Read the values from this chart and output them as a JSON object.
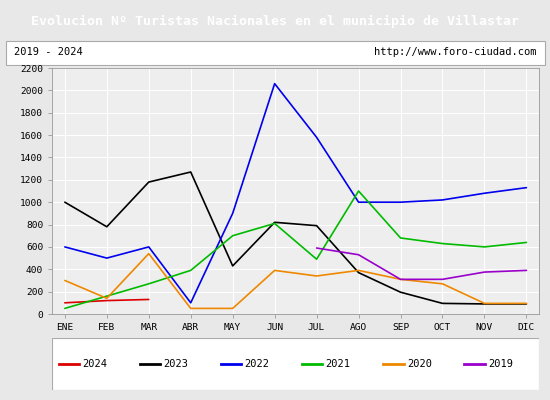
{
  "title": "Evolucion Nº Turistas Nacionales en el municipio de Villastar",
  "subtitle_left": "2019 - 2024",
  "subtitle_right": "http://www.foro-ciudad.com",
  "title_bg": "#4d7ebf",
  "title_color": "white",
  "months": [
    "ENE",
    "FEB",
    "MAR",
    "ABR",
    "MAY",
    "JUN",
    "JUL",
    "AGO",
    "SEP",
    "OCT",
    "NOV",
    "DIC"
  ],
  "ylim": [
    0,
    2200
  ],
  "yticks": [
    0,
    200,
    400,
    600,
    800,
    1000,
    1200,
    1400,
    1600,
    1800,
    2000,
    2200
  ],
  "series": {
    "2024": {
      "color": "#dd0000",
      "data": [
        100,
        120,
        130,
        null,
        null,
        null,
        null,
        null,
        null,
        null,
        null,
        null
      ]
    },
    "2023": {
      "color": "#000000",
      "data": [
        1000,
        780,
        1180,
        1270,
        430,
        820,
        790,
        370,
        195,
        95,
        90,
        90
      ]
    },
    "2022": {
      "color": "#0000ee",
      "data": [
        600,
        500,
        600,
        100,
        900,
        2060,
        1580,
        1000,
        1000,
        1020,
        1080,
        1130
      ]
    },
    "2021": {
      "color": "#00bb00",
      "data": [
        50,
        160,
        270,
        390,
        700,
        810,
        490,
        1100,
        680,
        630,
        600,
        640
      ]
    },
    "2020": {
      "color": "#ee8800",
      "data": [
        300,
        140,
        540,
        50,
        50,
        390,
        340,
        390,
        310,
        270,
        95,
        95
      ]
    },
    "2019": {
      "color": "#9900cc",
      "data": [
        null,
        null,
        null,
        null,
        null,
        null,
        590,
        530,
        310,
        310,
        375,
        390
      ]
    }
  },
  "legend_order": [
    "2024",
    "2023",
    "2022",
    "2021",
    "2020",
    "2019"
  ],
  "bg_color": "#e8e8e8",
  "plot_bg": "#eeeeee",
  "grid_color": "#ffffff"
}
